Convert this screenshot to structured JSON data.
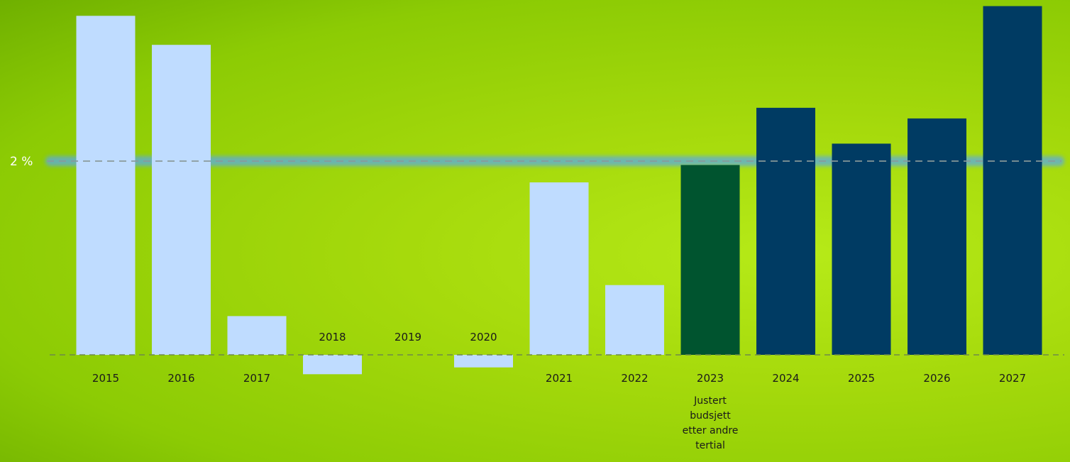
{
  "chart_data": {
    "type": "bar",
    "categories": [
      "2015",
      "2016",
      "2017",
      "2018",
      "2019",
      "2020",
      "2021",
      "2022",
      "2023",
      "2024",
      "2025",
      "2026",
      "2027"
    ],
    "category_notes": {
      "2023": [
        "Justert",
        "budsjett",
        "etter andre",
        "tertial"
      ]
    },
    "series": [
      {
        "values": [
          3.5,
          3.2,
          0.4,
          -0.2,
          0.0,
          -0.13,
          1.78,
          0.72,
          1.96,
          2.55,
          2.18,
          2.44,
          3.6
        ],
        "colors": [
          "#bfdcff",
          "#bfdcff",
          "#bfdcff",
          "#bfdcff",
          "#bfdcff",
          "#bfdcff",
          "#bfdcff",
          "#bfdcff",
          "#00542f",
          "#003b63",
          "#003b63",
          "#003b63",
          "#003b63"
        ]
      }
    ],
    "reference_line": {
      "value": 2,
      "label": "2 %",
      "color": "#5aa9e6"
    },
    "ylim": [
      -0.3,
      3.7
    ],
    "grid": false,
    "legend": "none",
    "title": "",
    "xlabel": "",
    "ylabel": ""
  }
}
